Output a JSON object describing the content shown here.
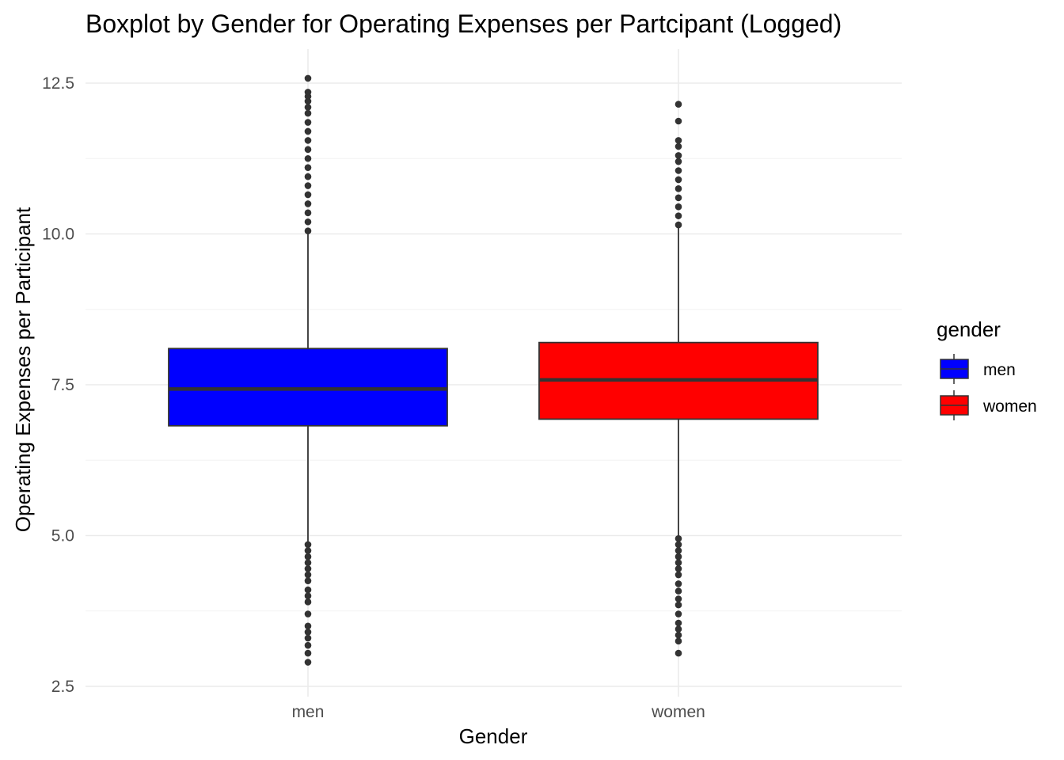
{
  "chart_data": {
    "type": "box",
    "title": "Boxplot by Gender for Operating Expenses per Partcipant (Logged)",
    "xlabel": "Gender",
    "ylabel": "Operating Expenses per Participant",
    "ylim": [
      2.45,
      13.0
    ],
    "yticks": [
      2.5,
      5.0,
      7.5,
      10.0,
      12.5
    ],
    "ytick_labels": [
      "2.5",
      "5.0",
      "7.5",
      "10.0",
      "12.5"
    ],
    "categories": [
      "men",
      "women"
    ],
    "grid": true,
    "legend": {
      "title": "gender",
      "position": "right",
      "entries": [
        {
          "label": "men",
          "color": "#0000ff"
        },
        {
          "label": "women",
          "color": "#ff0000"
        }
      ]
    },
    "boxes": [
      {
        "category": "men",
        "fill": "#0000ff",
        "q1": 6.82,
        "median": 7.43,
        "q3": 8.1,
        "whisker_low": 4.9,
        "whisker_high": 10.0,
        "outliers_high": [
          10.05,
          10.2,
          10.35,
          10.5,
          10.65,
          10.8,
          10.95,
          11.1,
          11.25,
          11.4,
          11.55,
          11.7,
          11.85,
          12.0,
          12.1,
          12.2,
          12.28,
          12.35,
          12.58
        ],
        "outliers_low": [
          4.85,
          4.75,
          4.65,
          4.55,
          4.45,
          4.35,
          4.25,
          4.1,
          4.0,
          3.9,
          3.7,
          3.5,
          3.4,
          3.3,
          3.18,
          3.05,
          2.9
        ]
      },
      {
        "category": "women",
        "fill": "#ff0000",
        "q1": 6.93,
        "median": 7.58,
        "q3": 8.2,
        "whisker_low": 5.0,
        "whisker_high": 10.1,
        "outliers_high": [
          10.15,
          10.3,
          10.45,
          10.6,
          10.75,
          10.9,
          11.05,
          11.2,
          11.3,
          11.45,
          11.55,
          11.87,
          12.15
        ],
        "outliers_low": [
          4.95,
          4.85,
          4.75,
          4.65,
          4.55,
          4.45,
          4.35,
          4.2,
          4.08,
          3.95,
          3.85,
          3.7,
          3.55,
          3.45,
          3.35,
          3.25,
          3.05
        ]
      }
    ]
  }
}
